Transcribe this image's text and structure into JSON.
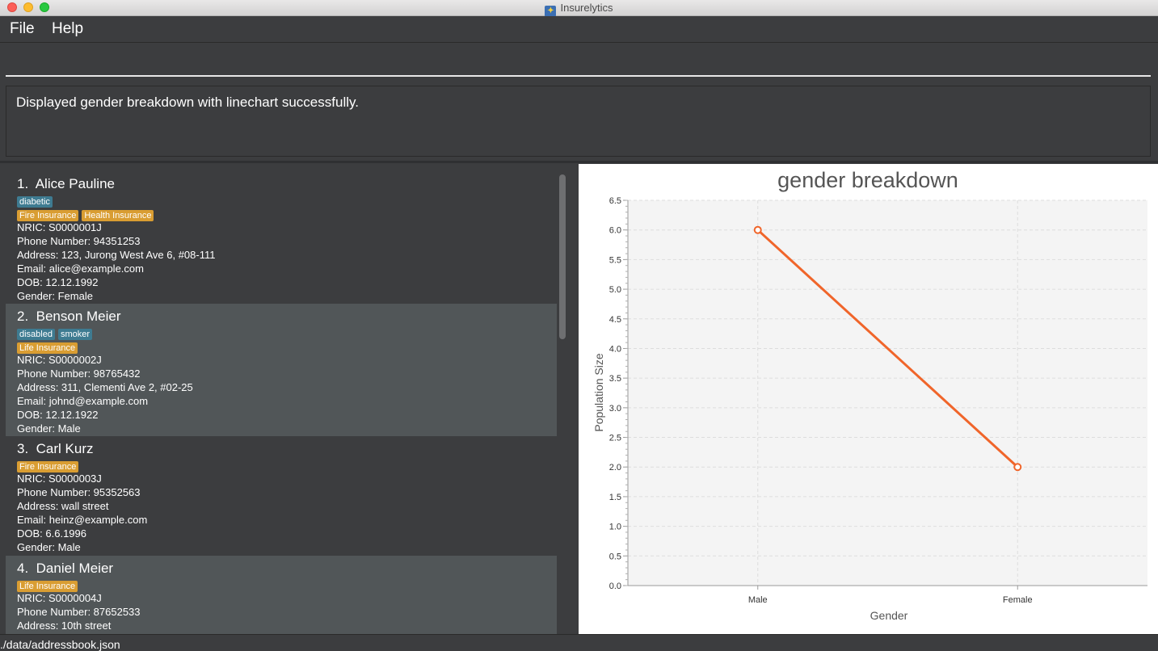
{
  "window": {
    "title": "Insurelytics"
  },
  "menu": {
    "file": "File",
    "help": "Help"
  },
  "command": {
    "value": ""
  },
  "result": {
    "message": "Displayed gender breakdown with linechart successfully."
  },
  "persons": [
    {
      "index": "1.",
      "name": "Alice Pauline",
      "tags": [
        "diabetic"
      ],
      "policies": [
        "Fire Insurance",
        "Health Insurance"
      ],
      "nric": "NRIC: S0000001J",
      "phone": "Phone Number: 94351253",
      "address": "Address: 123, Jurong West Ave 6, #08-111",
      "email": "Email: alice@example.com",
      "dob": "DOB: 12.12.1992",
      "gender": "Gender: Female"
    },
    {
      "index": "2.",
      "name": "Benson Meier",
      "tags": [
        "disabled",
        "smoker"
      ],
      "policies": [
        "Life Insurance"
      ],
      "nric": "NRIC: S0000002J",
      "phone": "Phone Number: 98765432",
      "address": "Address: 311, Clementi Ave 2, #02-25",
      "email": "Email: johnd@example.com",
      "dob": "DOB: 12.12.1922",
      "gender": "Gender: Male"
    },
    {
      "index": "3.",
      "name": "Carl Kurz",
      "tags": [],
      "policies": [
        "Fire Insurance"
      ],
      "nric": "NRIC: S0000003J",
      "phone": "Phone Number: 95352563",
      "address": "Address: wall street",
      "email": "Email: heinz@example.com",
      "dob": "DOB: 6.6.1996",
      "gender": "Gender: Male"
    },
    {
      "index": "4.",
      "name": "Daniel Meier",
      "tags": [],
      "policies": [
        "Life Insurance"
      ],
      "nric": "NRIC: S0000004J",
      "phone": "Phone Number: 87652533",
      "address": "Address: 10th street",
      "email": "",
      "dob": "",
      "gender": ""
    }
  ],
  "chart_data": {
    "type": "line",
    "title": "gender breakdown",
    "xlabel": "Gender",
    "ylabel": "Population Size",
    "categories": [
      "Male",
      "Female"
    ],
    "series": [
      {
        "values": [
          6,
          2
        ],
        "color": "#f0652a"
      }
    ],
    "ylim": [
      0,
      6.5
    ],
    "yticks": [
      "0.0",
      "0.5",
      "1.0",
      "1.5",
      "2.0",
      "2.5",
      "3.0",
      "3.5",
      "4.0",
      "4.5",
      "5.0",
      "5.5",
      "6.0",
      "6.5"
    ],
    "grid": true,
    "plot_background": "#f4f4f4"
  },
  "status": {
    "path": "./data/addressbook.json"
  },
  "colors": {
    "background": "#3c3d3f",
    "card_alt": "#515658",
    "tag": "#3e7b91",
    "policy": "#d99d32"
  }
}
